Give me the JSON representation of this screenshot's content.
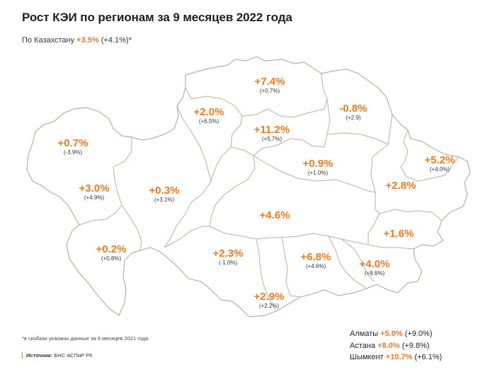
{
  "title": "Рост КЭИ по регионам за 9 месяцев 2022 года",
  "country": {
    "label": "По Казахстану",
    "value": "+3.5%",
    "prev": "(+4.1%)*"
  },
  "regions": [
    {
      "id": "north-kazakhstan",
      "value": "+7.4%",
      "prev": "(+0.7%)"
    },
    {
      "id": "pavlodar",
      "value": "-0.8%",
      "prev": "(+2.9)"
    },
    {
      "id": "kostanay",
      "value": "+2.0%",
      "prev": "(+6.5%)"
    },
    {
      "id": "akmola",
      "value": "+11.2%",
      "prev": "(+5,7%)"
    },
    {
      "id": "west-kazakhstan",
      "value": "+0.7%",
      "prev": "(-3.9%)"
    },
    {
      "id": "east-kazakhstan",
      "value": "+5.2%",
      "prev": "(+4.0%)"
    },
    {
      "id": "karaganda",
      "value": "+0.9%",
      "prev": "(+1.0%)"
    },
    {
      "id": "abai",
      "value": "+2.8%",
      "prev": ""
    },
    {
      "id": "atyrau",
      "value": "+3.0%",
      "prev": "(+4.9%)"
    },
    {
      "id": "aktobe",
      "value": "+0.3%",
      "prev": "(+3.1%)"
    },
    {
      "id": "ulytau",
      "value": "+4.6%",
      "prev": ""
    },
    {
      "id": "zhetysu",
      "value": "+1.6%",
      "prev": ""
    },
    {
      "id": "mangystau",
      "value": "+0.2%",
      "prev": "(+0,8%)"
    },
    {
      "id": "kyzylorda",
      "value": "+2.3%",
      "prev": "(-1.0%)"
    },
    {
      "id": "zhambyl",
      "value": "+6.8%",
      "prev": "(+4.6%)"
    },
    {
      "id": "almaty-region",
      "value": "+4.0%",
      "prev": "(+8.6%)"
    },
    {
      "id": "turkestan",
      "value": "+2.9%",
      "prev": "(+2.2%)"
    }
  ],
  "cities": [
    {
      "name": "Алматы",
      "value": "+5.0%",
      "prev": "(+9.0%)"
    },
    {
      "name": "Астана",
      "value": "+8.0%",
      "prev": "(+9.8%)"
    },
    {
      "name": "Шымкент",
      "value": "+10.7%",
      "prev": "(+6.1%)"
    }
  ],
  "footnote": "*в скобках указаны данные за 9 месяцев 2021 года",
  "source": {
    "label": "Источник:",
    "text": "БНС АСПиР РК"
  },
  "colors": {
    "accent": "#f07a22",
    "land": "#e8d8c8",
    "border": "#bcae9f"
  }
}
